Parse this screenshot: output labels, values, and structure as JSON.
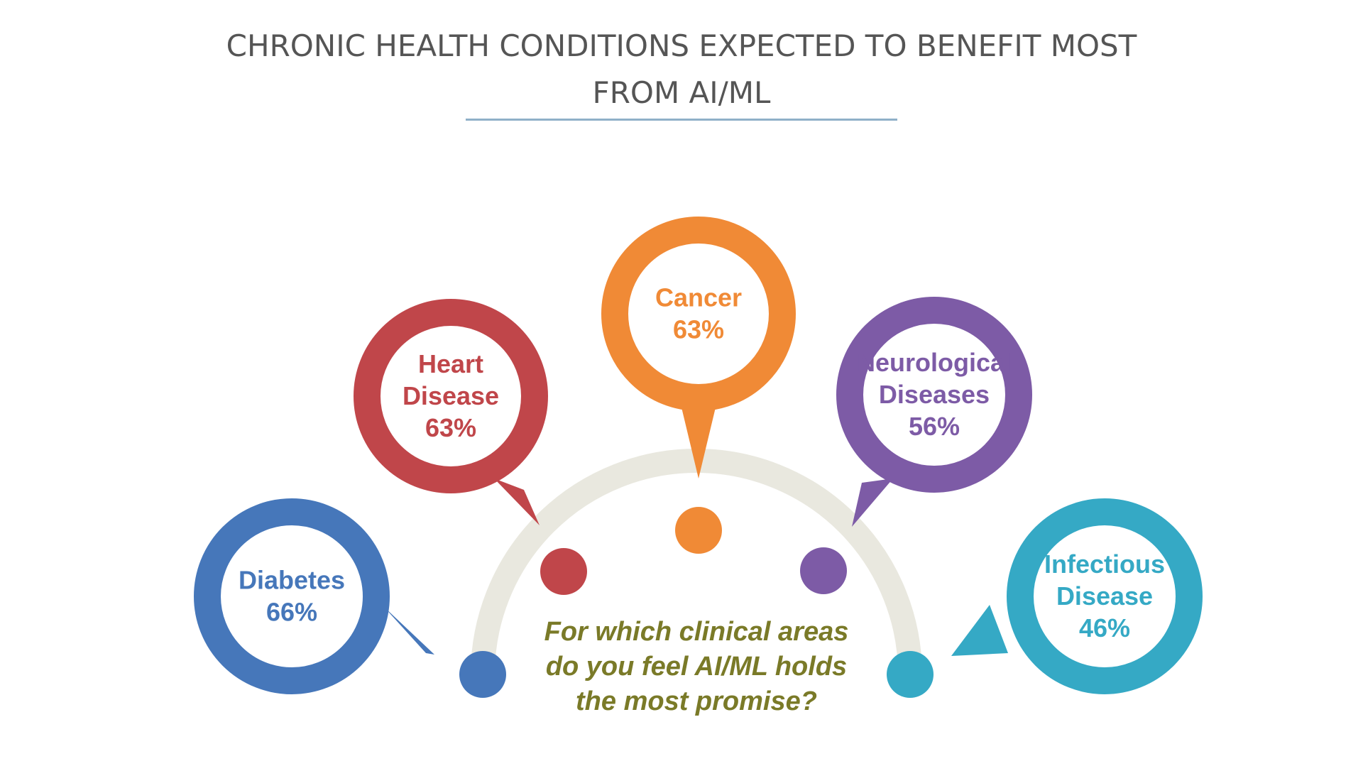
{
  "title_line1": "CHRONIC HEALTH CONDITIONS EXPECTED TO BENEFIT MOST",
  "title_line2": "FROM AI/ML",
  "question": [
    "For which clinical areas",
    "do you feel AI/ML holds",
    "the most promise?"
  ],
  "colors": {
    "arc": "#e9e8df",
    "question": "#7a7a28"
  },
  "chart_data": {
    "type": "bubble-infographic",
    "title": "CHRONIC HEALTH CONDITIONS EXPECTED TO BENEFIT MOST FROM AI/ML",
    "categories": [
      "Diabetes",
      "Heart Disease",
      "Cancer",
      "Neurological Diseases",
      "Infectious Disease"
    ],
    "values": [
      66,
      63,
      63,
      56,
      46
    ],
    "unit": "%",
    "items": [
      {
        "label_lines": [
          "Diabetes"
        ],
        "value_text": "66%",
        "value": 66,
        "color": "#4677ba"
      },
      {
        "label_lines": [
          "Heart",
          "Disease"
        ],
        "value_text": "63%",
        "value": 63,
        "color": "#c0464a"
      },
      {
        "label_lines": [
          "Cancer"
        ],
        "value_text": "63%",
        "value": 63,
        "color": "#f08a36"
      },
      {
        "label_lines": [
          "Neurological",
          "Diseases"
        ],
        "value_text": "56%",
        "value": 56,
        "color": "#7d5ba6"
      },
      {
        "label_lines": [
          "Infectious",
          "Disease"
        ],
        "value_text": "46%",
        "value": 46,
        "color": "#35a9c5"
      }
    ]
  }
}
